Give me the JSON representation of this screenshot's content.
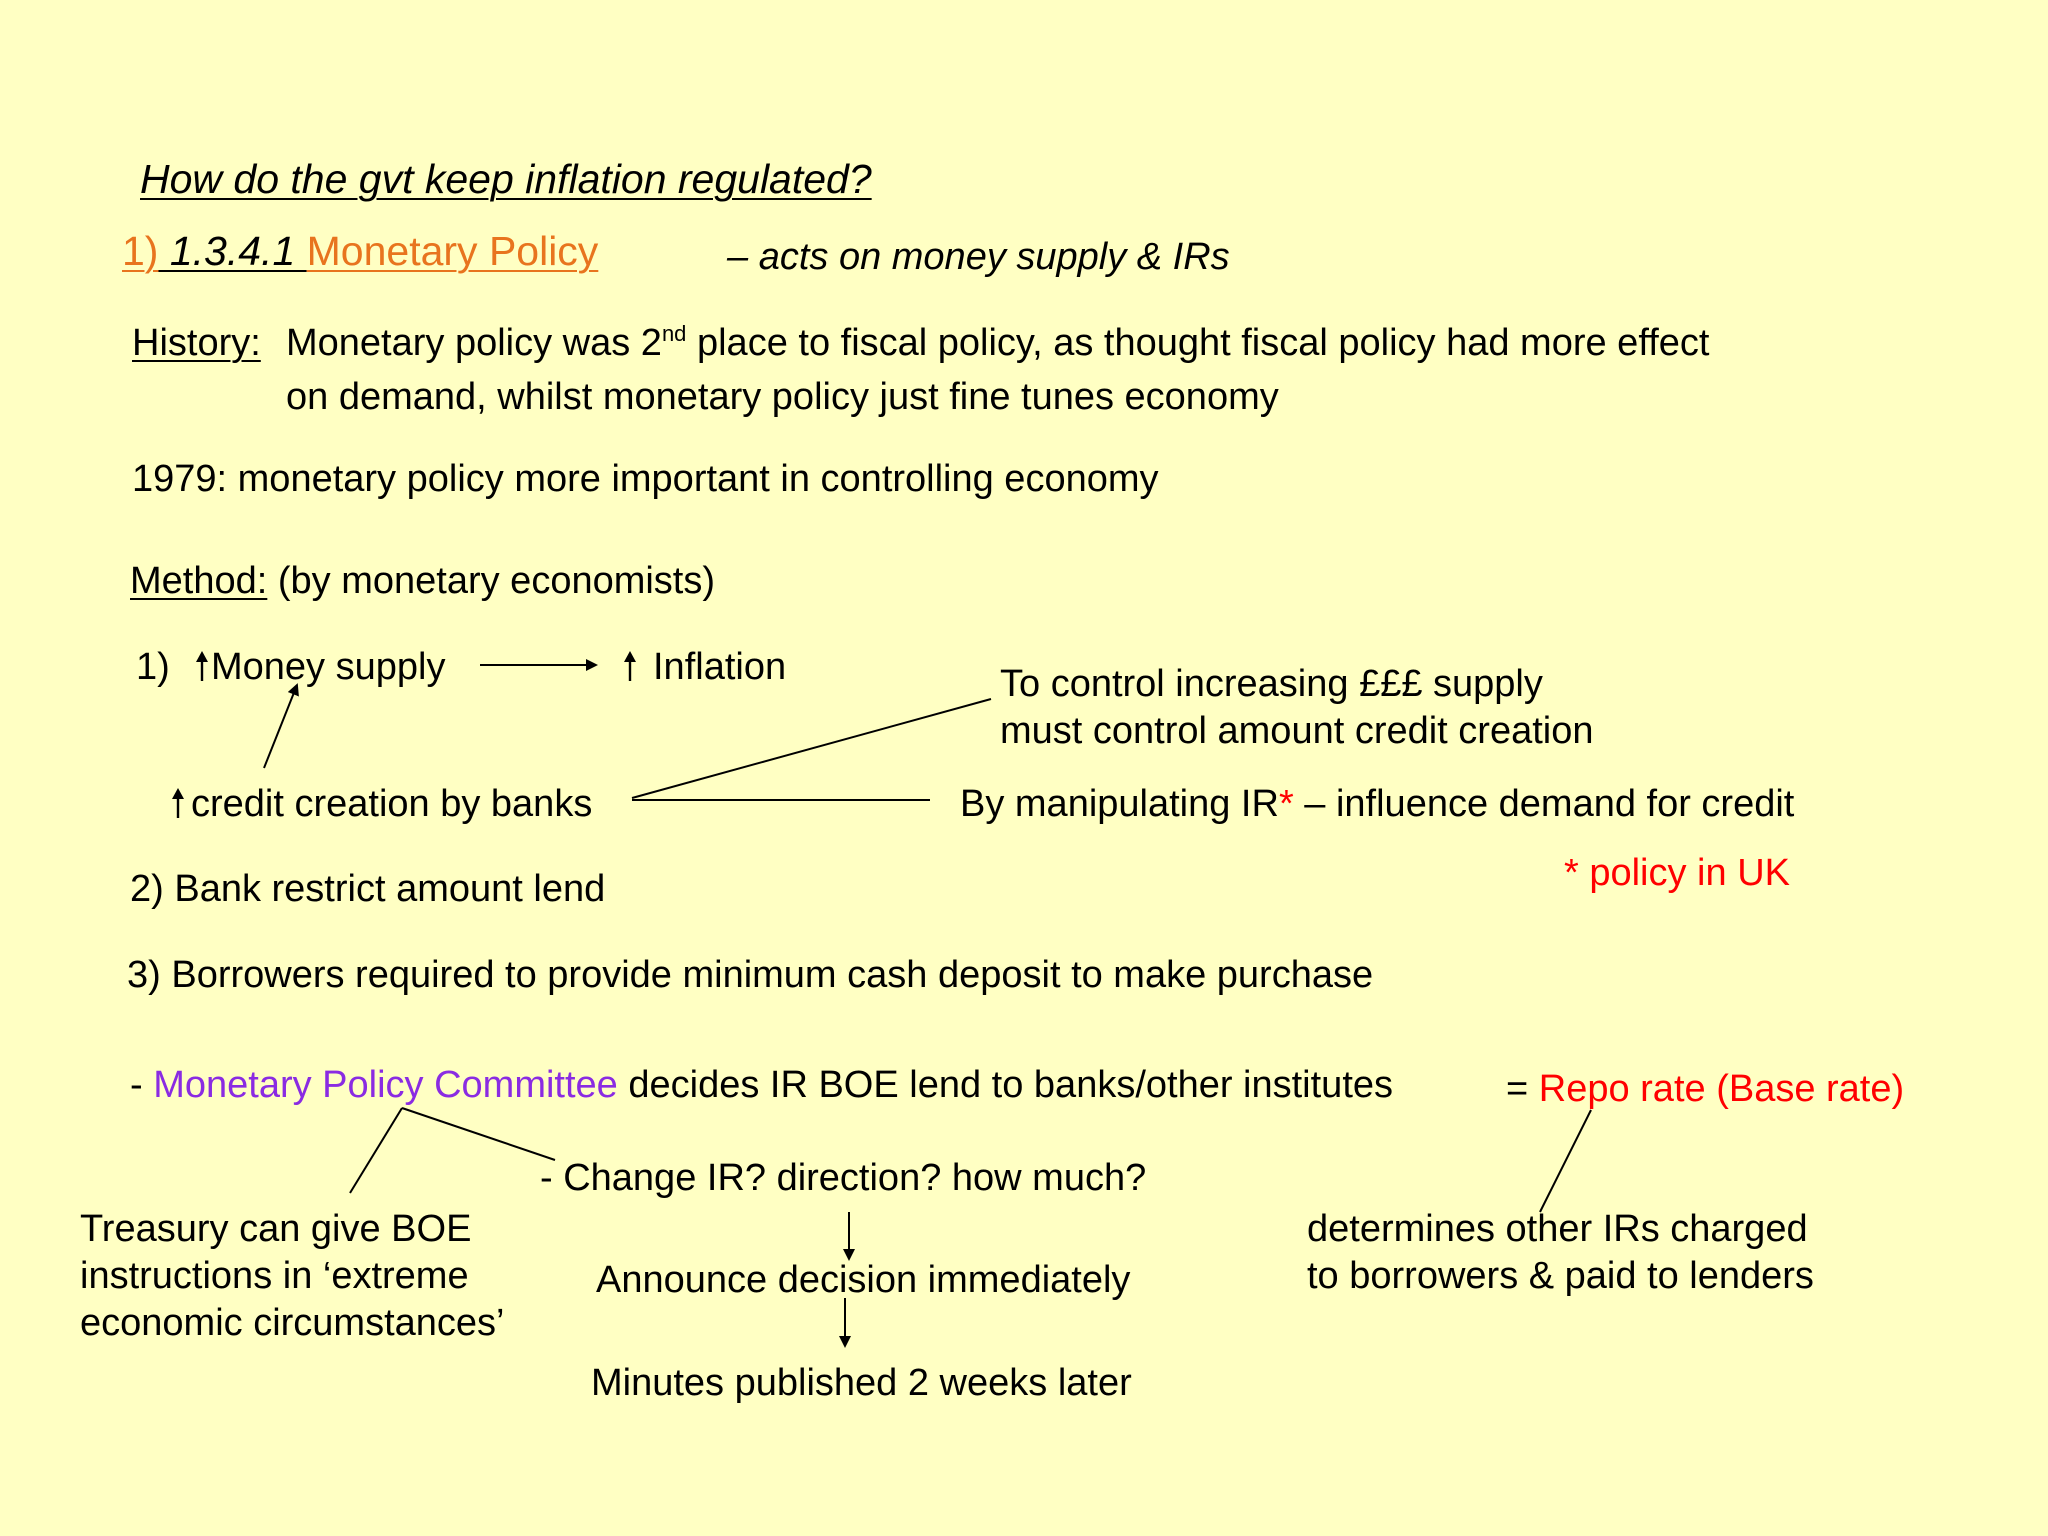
{
  "title": "How do the gvt keep inflation regulated?",
  "section": {
    "number_prefix": "1)",
    "number": " 1.3.4.1 ",
    "name": "Monetary Policy",
    "description": "– acts on money supply & IRs"
  },
  "history": {
    "label": "History:",
    "line1_before_sup": "Monetary policy was 2",
    "line1_sup": "nd",
    "line1_after_sup": "place to fiscal policy, as thought fiscal policy had more effect",
    "line2": "on demand, whilst monetary policy just fine tunes economy"
  },
  "year_note": "1979: monetary policy more important in controlling economy",
  "method": {
    "label": "Method:",
    "text": "(by monetary economists)"
  },
  "method1": {
    "number": "1)",
    "money_supply": "Money supply",
    "inflation": "Inflation",
    "credit_creation": "credit creation by banks",
    "control_line1": "To control increasing £££ supply",
    "control_line2": "must control amount credit creation",
    "manipulating_before": "By manipulating IR",
    "asterisk": "*",
    "manipulating_after": " – influence demand for credit",
    "policy_uk": "* policy in UK"
  },
  "method2": "2) Bank restrict amount lend",
  "method3": "3) Borrowers required to provide minimum cash deposit to make purchase",
  "mpc": {
    "dash": "- ",
    "committee": "Monetary Policy Committee",
    "decides": " decides IR BOE lend to banks/other institutes",
    "equals": "= ",
    "repo": "Repo rate (Base rate)",
    "treasury_line1": "Treasury can give BOE",
    "treasury_line2": "instructions in ‘extreme",
    "treasury_line3": "economic circumstances’",
    "change_ir": "- Change IR? direction? how much?",
    "announce": "Announce decision immediately",
    "minutes": "Minutes published 2 weeks later",
    "determines_line1": "determines other IRs charged",
    "determines_line2": "to borrowers & paid to lenders"
  },
  "colors": {
    "background": "#ffffc3",
    "orange": "#e8741e",
    "red": "#ff0000",
    "purple": "#8a2be2"
  }
}
